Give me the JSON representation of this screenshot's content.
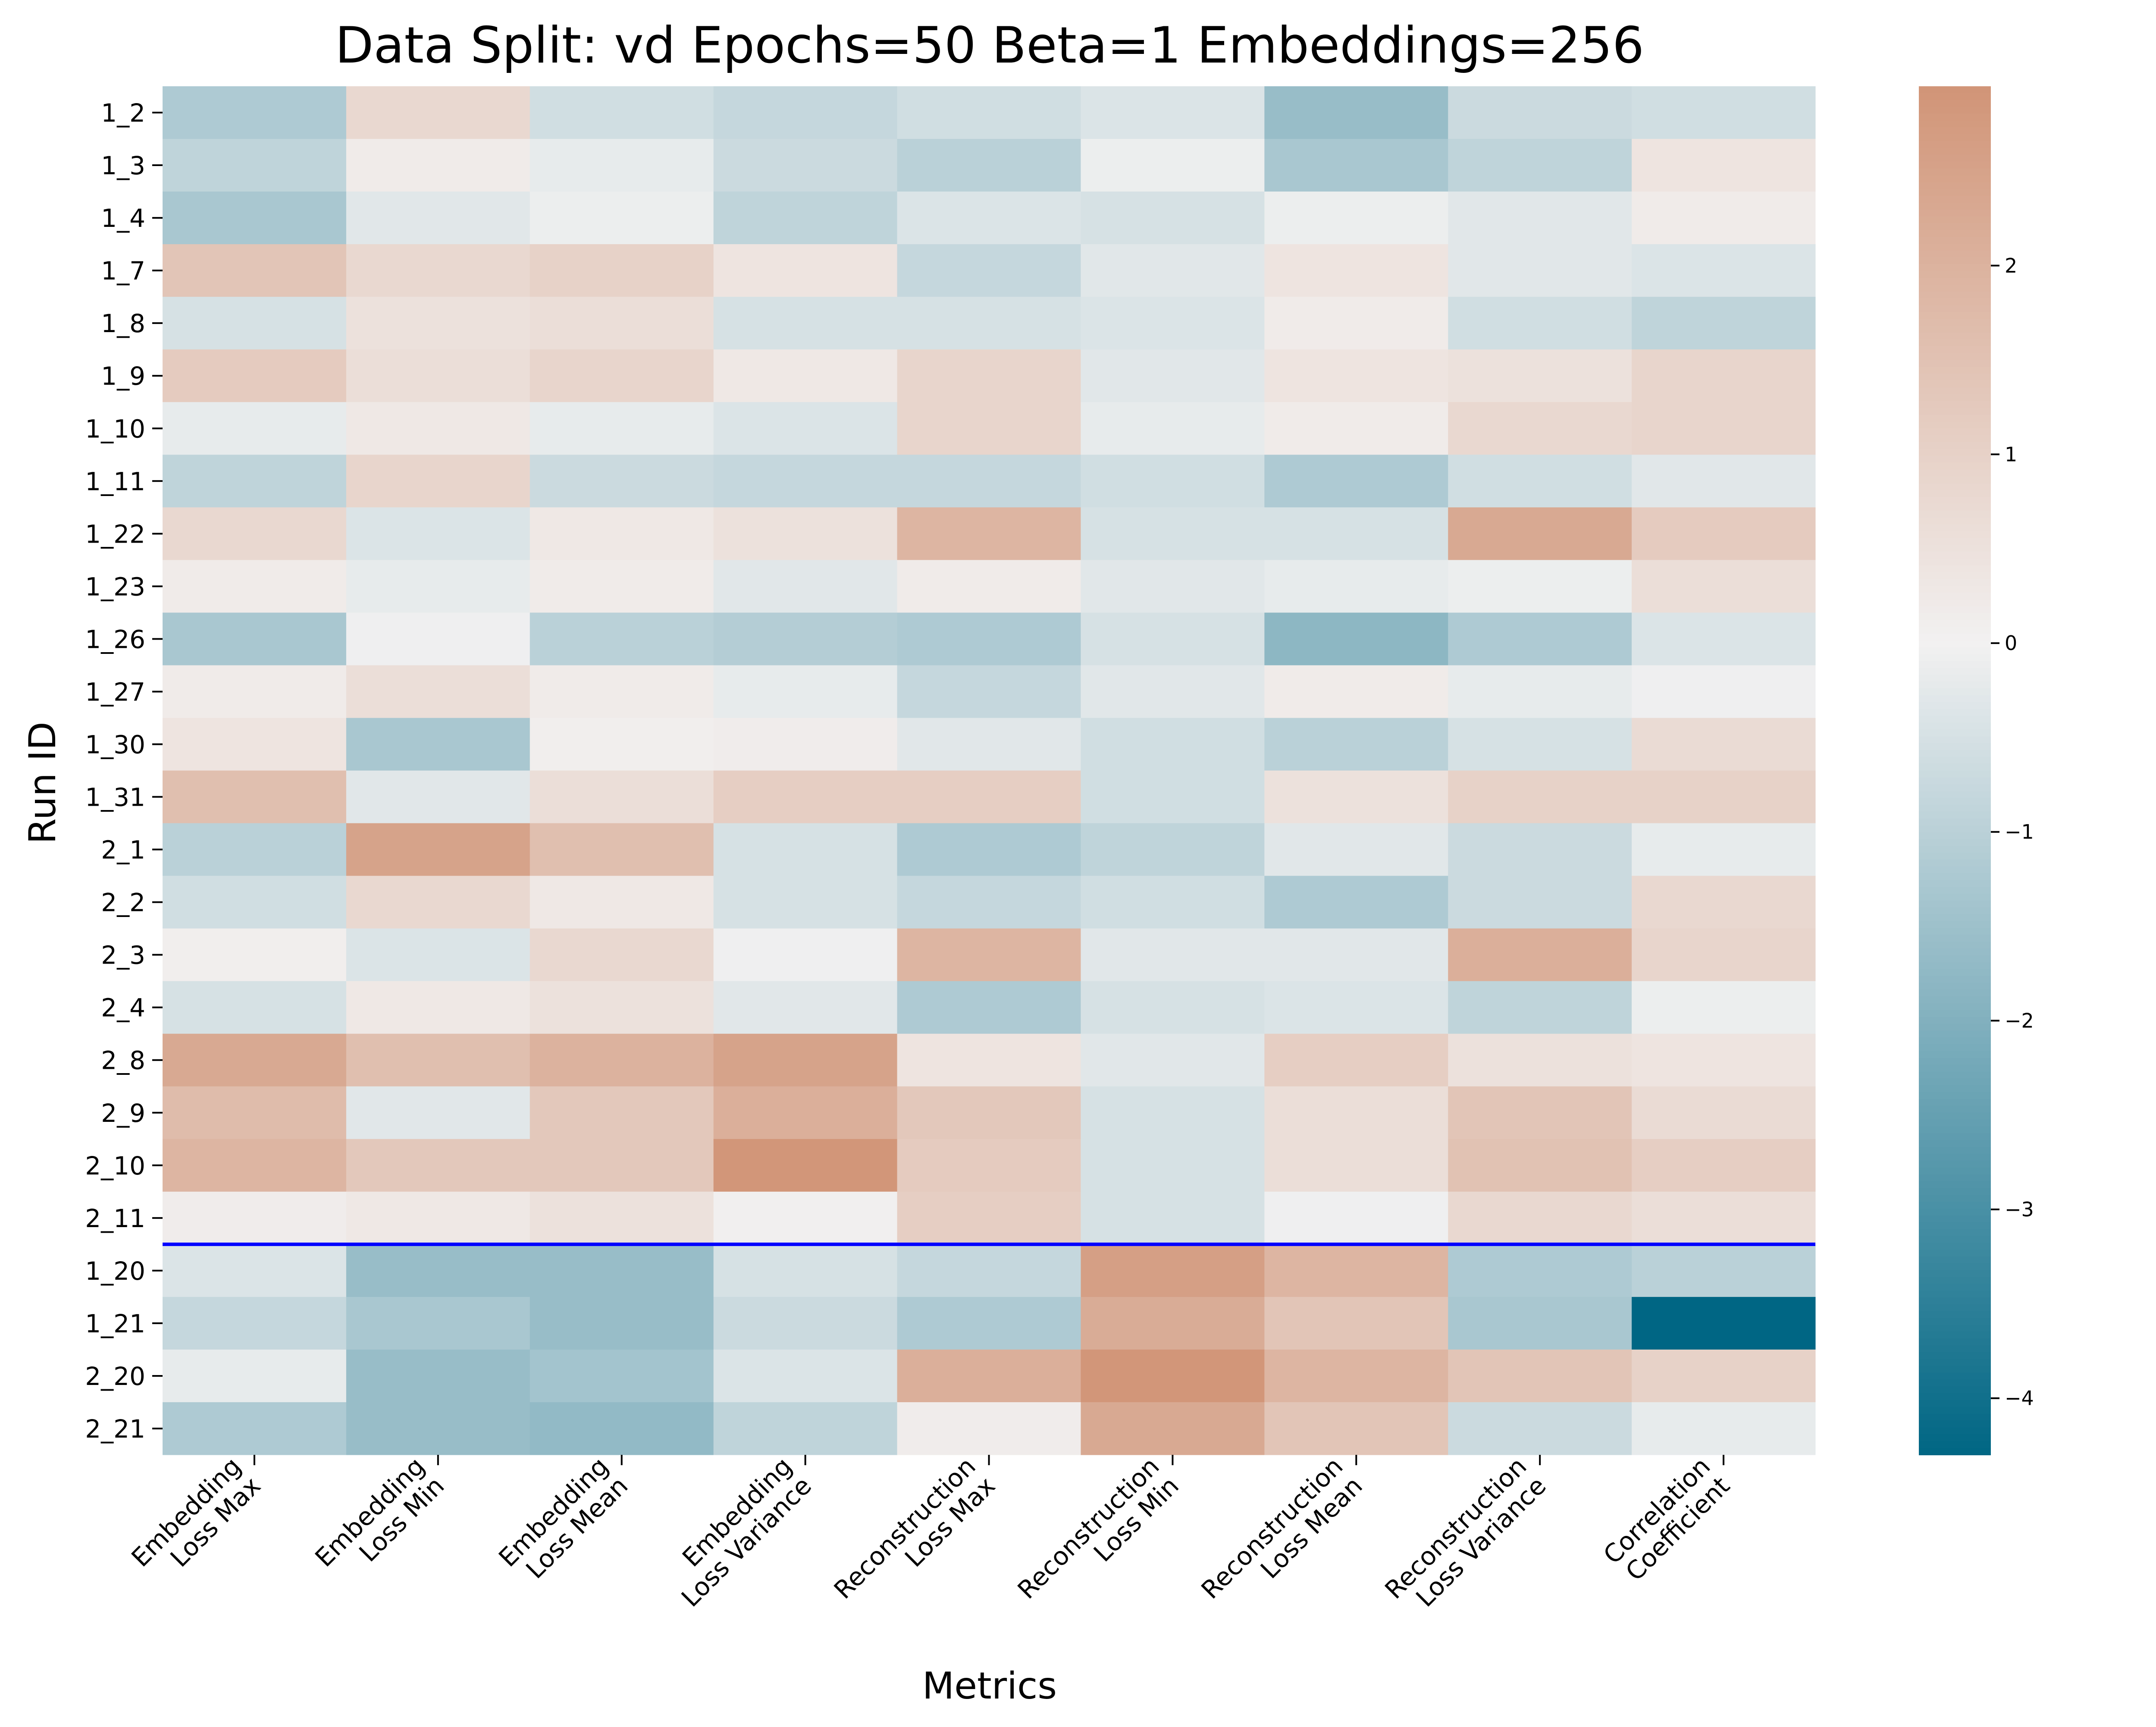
{
  "chart_data": {
    "type": "heatmap",
    "title": "Data Split: vd Epochs=50 Beta=1 Embeddings=256",
    "xlabel": "Metrics",
    "ylabel": "Run ID",
    "columns": [
      [
        "Embedding",
        "Loss Max"
      ],
      [
        "Embedding",
        "Loss Min"
      ],
      [
        "Embedding",
        "Loss Mean"
      ],
      [
        "Embedding",
        "Loss Variance"
      ],
      [
        "Reconstruction",
        "Loss Max"
      ],
      [
        "Reconstruction",
        "Loss Min"
      ],
      [
        "Reconstruction",
        "Loss Mean"
      ],
      [
        "Reconstruction",
        "Loss Variance"
      ],
      [
        "Correlation",
        "Coefficient"
      ]
    ],
    "rows": [
      "1_2",
      "1_3",
      "1_4",
      "1_7",
      "1_8",
      "1_9",
      "1_10",
      "1_11",
      "1_22",
      "1_23",
      "1_26",
      "1_27",
      "1_30",
      "1_31",
      "2_1",
      "2_2",
      "2_3",
      "2_4",
      "2_8",
      "2_9",
      "2_10",
      "2_11",
      "1_20",
      "1_21",
      "2_20",
      "2_21"
    ],
    "values": [
      [
        -1.2,
        0.8,
        -0.6,
        -0.8,
        -0.6,
        -0.4,
        -1.6,
        -0.7,
        -0.6
      ],
      [
        -0.9,
        0.2,
        -0.2,
        -0.7,
        -1.0,
        -0.1,
        -1.3,
        -0.9,
        0.4
      ],
      [
        -1.3,
        -0.3,
        -0.1,
        -0.9,
        -0.4,
        -0.5,
        -0.1,
        -0.3,
        0.2
      ],
      [
        1.4,
        0.8,
        1.0,
        0.4,
        -0.8,
        -0.3,
        0.4,
        -0.3,
        -0.4
      ],
      [
        -0.5,
        0.5,
        0.6,
        -0.5,
        -0.5,
        -0.4,
        0.2,
        -0.6,
        -0.9
      ],
      [
        1.2,
        0.6,
        0.9,
        0.3,
        0.9,
        -0.3,
        0.4,
        0.5,
        0.9
      ],
      [
        -0.2,
        0.3,
        -0.2,
        -0.4,
        0.9,
        -0.2,
        0.2,
        0.8,
        0.9
      ],
      [
        -0.9,
        0.9,
        -0.7,
        -0.8,
        -0.8,
        -0.6,
        -1.2,
        -0.6,
        -0.3
      ],
      [
        0.8,
        -0.4,
        0.3,
        0.5,
        1.9,
        -0.5,
        -0.5,
        2.3,
        1.2
      ],
      [
        0.2,
        -0.2,
        0.2,
        -0.3,
        0.2,
        -0.3,
        -0.2,
        -0.1,
        0.6
      ],
      [
        -1.3,
        -0.05,
        -1.0,
        -1.1,
        -1.2,
        -0.5,
        -1.8,
        -1.2,
        -0.4
      ],
      [
        0.2,
        0.6,
        0.2,
        -0.2,
        -0.8,
        -0.3,
        0.2,
        -0.2,
        -0.05
      ],
      [
        0.4,
        -1.3,
        0.1,
        0.15,
        -0.3,
        -0.6,
        -1.0,
        -0.5,
        0.7
      ],
      [
        1.6,
        -0.3,
        0.6,
        1.1,
        1.1,
        -0.6,
        0.5,
        1.0,
        1.0
      ],
      [
        -1.0,
        2.5,
        1.6,
        -0.5,
        -1.2,
        -0.9,
        -0.3,
        -0.7,
        -0.2
      ],
      [
        -0.6,
        0.8,
        0.3,
        -0.5,
        -0.8,
        -0.6,
        -1.2,
        -0.7,
        0.8
      ],
      [
        0.1,
        -0.4,
        0.8,
        -0.05,
        1.9,
        -0.3,
        -0.3,
        2.1,
        0.9
      ],
      [
        -0.5,
        0.3,
        0.5,
        -0.3,
        -1.2,
        -0.5,
        -0.4,
        -0.9,
        -0.1
      ],
      [
        2.3,
        1.6,
        2.0,
        2.5,
        0.4,
        -0.3,
        1.1,
        0.5,
        0.4
      ],
      [
        1.7,
        -0.3,
        1.3,
        2.1,
        1.3,
        -0.5,
        0.6,
        1.4,
        0.7
      ],
      [
        1.9,
        1.3,
        1.3,
        2.9,
        1.2,
        -0.5,
        0.6,
        1.5,
        1.1
      ],
      [
        0.15,
        0.3,
        0.5,
        0.05,
        1.1,
        -0.5,
        -0.05,
        0.8,
        0.6
      ],
      [
        -0.4,
        -1.6,
        -1.6,
        -0.5,
        -0.8,
        2.6,
        1.9,
        -1.2,
        -1.0
      ],
      [
        -0.8,
        -1.3,
        -1.6,
        -0.7,
        -1.2,
        2.2,
        1.4,
        -1.3,
        -4.3
      ],
      [
        -0.2,
        -1.6,
        -1.4,
        -0.4,
        2.1,
        2.9,
        1.9,
        1.4,
        1.0
      ],
      [
        -1.2,
        -1.6,
        -1.7,
        -0.9,
        0.15,
        2.3,
        1.4,
        -0.7,
        -0.2
      ]
    ],
    "colorbar": {
      "vmin": -4.3,
      "vmax": 2.95,
      "ticks": [
        2,
        1,
        0,
        -1,
        -2,
        -3,
        -4
      ],
      "tick_labels": [
        "2",
        "1",
        "0",
        "−1",
        "−2",
        "−3",
        "−4"
      ]
    },
    "separator_after_row": "2_11",
    "colors": {
      "negative_end": "#006684",
      "neutral": "#f2f1f1",
      "positive_end": "#c26a3f",
      "separator": "#0000ff"
    },
    "grid": false
  }
}
